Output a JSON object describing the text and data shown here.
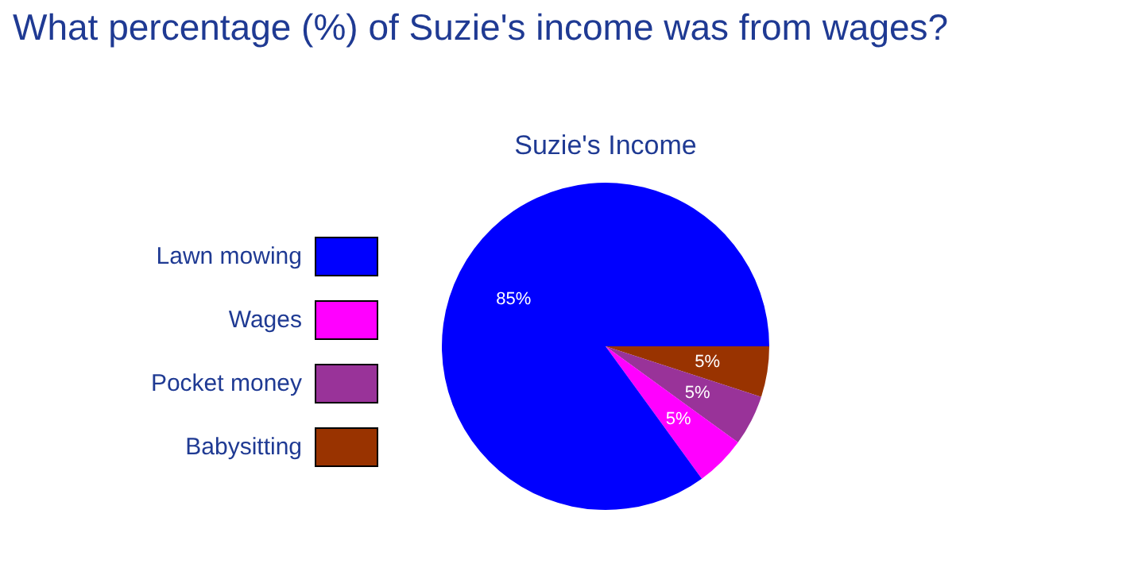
{
  "chart_data": {
    "type": "pie",
    "title": "What percentage (%) of Suzie's income was from wages?",
    "subtitle": "Suzie's Income",
    "categories": [
      "Lawn mowing",
      "Wages",
      "Pocket money",
      "Babysitting"
    ],
    "values": [
      85,
      5,
      5,
      5
    ],
    "colors": [
      "#0000ff",
      "#ff00ff",
      "#993399",
      "#993300"
    ],
    "value_labels": [
      "85%",
      "5%",
      "5%",
      "5%"
    ],
    "legend": "left"
  }
}
